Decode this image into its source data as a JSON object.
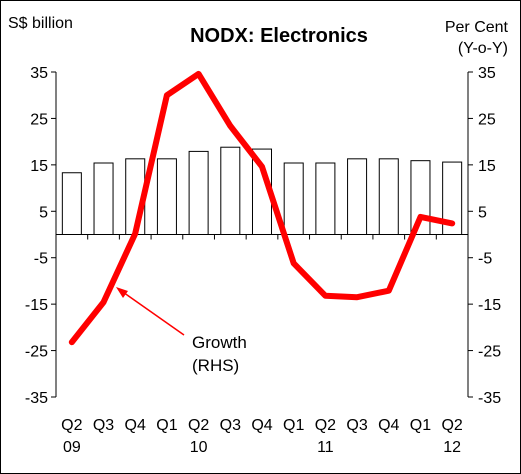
{
  "chart_data": {
    "type": "bar",
    "title": "NODX: Electronics",
    "left_axis_label": "S$ billion",
    "right_axis_label_line1": "Per Cent",
    "right_axis_label_line2": "(Y-o-Y)",
    "ylim": [
      -35,
      35
    ],
    "y_ticks": [
      "35",
      "25",
      "15",
      "5",
      "-5",
      "-15",
      "-25",
      "-35"
    ],
    "y_tick_values": [
      35,
      25,
      15,
      5,
      -5,
      -15,
      -25,
      -35
    ],
    "categories": [
      "Q2",
      "Q3",
      "Q4",
      "Q1",
      "Q2",
      "Q3",
      "Q4",
      "Q1",
      "Q2",
      "Q3",
      "Q4",
      "Q1",
      "Q2"
    ],
    "years": [
      {
        "label": "09",
        "index": 0
      },
      {
        "label": "10",
        "index": 4
      },
      {
        "label": "11",
        "index": 8
      },
      {
        "label": "12",
        "index": 12
      }
    ],
    "series": [
      {
        "type": "bar",
        "axis": "left",
        "values": [
          13.3,
          15.4,
          16.3,
          16.3,
          17.9,
          18.8,
          18.4,
          15.4,
          15.4,
          16.3,
          16.3,
          15.9,
          15.6
        ]
      },
      {
        "name": "Growth (RHS)",
        "type": "line",
        "axis": "right",
        "color": "#ff0000",
        "values": [
          -23.2,
          -14.6,
          0.2,
          30.0,
          34.6,
          23.4,
          14.6,
          -6.2,
          -13.2,
          -13.5,
          -12.1,
          3.8,
          2.4
        ]
      }
    ],
    "annotation": {
      "line1": "Growth",
      "line2": "(RHS)"
    },
    "legend": "none",
    "grid": false
  }
}
